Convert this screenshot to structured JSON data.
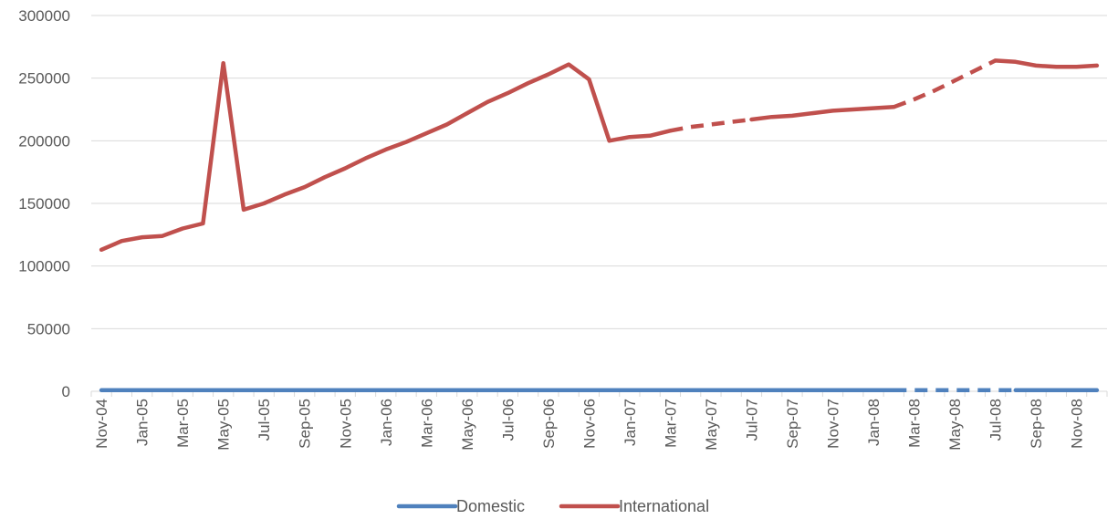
{
  "chart_data": {
    "type": "line",
    "ylim": [
      0,
      300000
    ],
    "yticks": [
      0,
      50000,
      100000,
      150000,
      200000,
      250000,
      300000
    ],
    "grid": true,
    "legend_position": "bottom",
    "x": [
      "Nov-04",
      "Dec-04",
      "Jan-05",
      "Feb-05",
      "Mar-05",
      "Apr-05",
      "May-05",
      "Jun-05",
      "Jul-05",
      "Aug-05",
      "Sep-05",
      "Oct-05",
      "Nov-05",
      "Dec-05",
      "Jan-06",
      "Feb-06",
      "Mar-06",
      "Apr-06",
      "May-06",
      "Jun-06",
      "Jul-06",
      "Aug-06",
      "Sep-06",
      "Oct-06",
      "Nov-06",
      "Dec-06",
      "Jan-07",
      "Feb-07",
      "Mar-07",
      "Apr-07",
      "May-07",
      "Jun-07",
      "Jul-07",
      "Aug-07",
      "Sep-07",
      "Oct-07",
      "Nov-07",
      "Dec-07",
      "Jan-08",
      "Feb-08",
      "Mar-08",
      "Apr-08",
      "May-08",
      "Jun-08",
      "Jul-08",
      "Aug-08",
      "Sep-08",
      "Oct-08",
      "Nov-08",
      "Dec-08"
    ],
    "xtick_labels": [
      "Nov-04",
      "Jan-05",
      "Mar-05",
      "May-05",
      "Jul-05",
      "Sep-05",
      "Nov-05",
      "Jan-06",
      "Mar-06",
      "May-06",
      "Jul-06",
      "Sep-06",
      "Nov-06",
      "Jan-07",
      "Mar-07",
      "May-07",
      "Jul-07",
      "Sep-07",
      "Nov-07",
      "Jan-08",
      "Mar-08",
      "May-08",
      "Jul-08",
      "Sep-08",
      "Nov-08"
    ],
    "series": [
      {
        "name": "Domestic",
        "color": "#4f81bd",
        "values": [
          900,
          900,
          900,
          900,
          900,
          900,
          900,
          900,
          900,
          900,
          900,
          900,
          900,
          900,
          900,
          900,
          900,
          900,
          900,
          900,
          900,
          900,
          900,
          900,
          900,
          900,
          900,
          900,
          900,
          900,
          900,
          900,
          900,
          900,
          900,
          900,
          900,
          900,
          900,
          900,
          900,
          900,
          900,
          900,
          900,
          900,
          900,
          900,
          900,
          900
        ],
        "dashed_segments": [
          [
            39,
            45
          ]
        ]
      },
      {
        "name": "International",
        "color": "#c0504d",
        "values": [
          113000,
          120000,
          123000,
          124000,
          130000,
          134000,
          262000,
          145000,
          150000,
          157000,
          163000,
          171000,
          178000,
          186000,
          193000,
          199000,
          206000,
          213000,
          222000,
          231000,
          238000,
          246000,
          253000,
          261000,
          249000,
          200000,
          203000,
          204000,
          208000,
          211000,
          213000,
          215000,
          217000,
          219000,
          220000,
          222000,
          224000,
          225000,
          226000,
          227000,
          233000,
          240000,
          248000,
          256000,
          264000,
          263000,
          260000,
          259000,
          259000,
          260000
        ],
        "dashed_segments": [
          [
            28,
            32
          ],
          [
            39,
            44
          ]
        ]
      }
    ]
  }
}
